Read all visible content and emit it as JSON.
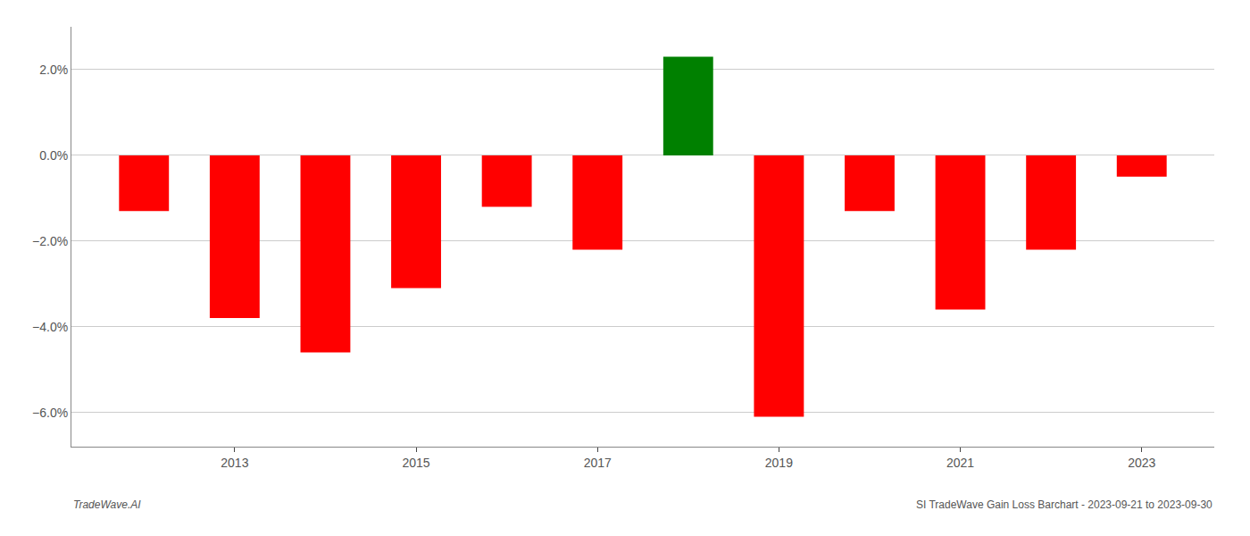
{
  "chart_data": {
    "type": "bar",
    "x": [
      2012,
      2013,
      2014,
      2015,
      2016,
      2017,
      2018,
      2019,
      2020,
      2021,
      2022,
      2023
    ],
    "values": [
      -0.013,
      -0.038,
      -0.046,
      -0.031,
      -0.012,
      -0.022,
      0.023,
      -0.061,
      -0.013,
      -0.036,
      -0.022,
      -0.005
    ],
    "colors": [
      "#FF0000",
      "#FF0000",
      "#FF0000",
      "#FF0000",
      "#FF0000",
      "#FF0000",
      "#008000",
      "#FF0000",
      "#FF0000",
      "#FF0000",
      "#FF0000",
      "#FF0000"
    ],
    "xlim": [
      2011.2,
      2023.8
    ],
    "xticks": [
      2013,
      2015,
      2017,
      2019,
      2021,
      2023
    ],
    "ylim": [
      -0.068,
      0.03
    ],
    "yticks": [
      {
        "value": -0.06,
        "label": "−6.0%"
      },
      {
        "value": -0.04,
        "label": "−4.0%"
      },
      {
        "value": -0.02,
        "label": "−2.0%"
      },
      {
        "value": 0.0,
        "label": "0.0%"
      },
      {
        "value": 0.02,
        "label": "2.0%"
      }
    ],
    "annotations": [
      "TradeWave.AI",
      "SI TradeWave Gain Loss Barchart - 2023-09-21 to 2023-09-30"
    ],
    "grid": true
  }
}
